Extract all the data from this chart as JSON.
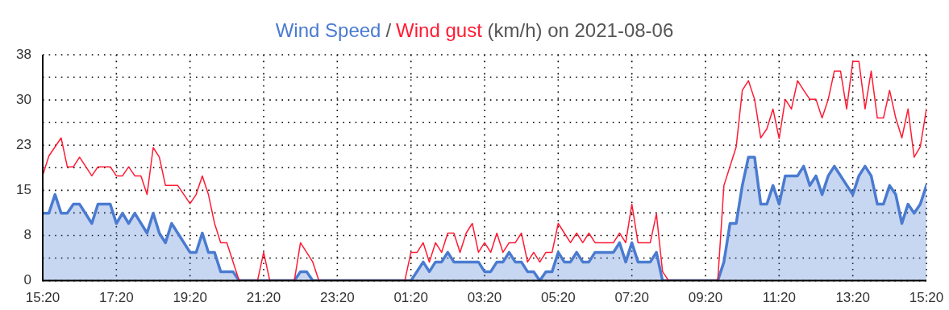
{
  "chart_data": {
    "type": "line",
    "title": "(km/h) on 2021-08-06",
    "annotations": [
      "/"
    ],
    "xlim": [
      "2021-08-06T15:20",
      "2021-08-07T15:20"
    ],
    "xticks": [
      {
        "value": "2021-08-06T15:20",
        "label": "15:20"
      },
      {
        "value": "2021-08-06T17:20",
        "label": "17:20"
      },
      {
        "value": "2021-08-06T19:20",
        "label": "19:20"
      },
      {
        "value": "2021-08-06T21:20",
        "label": "21:20"
      },
      {
        "value": "2021-08-06T23:20",
        "label": "23:20"
      },
      {
        "value": "2021-08-07T01:20",
        "label": "01:20"
      },
      {
        "value": "2021-08-07T03:20",
        "label": "03:20"
      },
      {
        "value": "2021-08-07T05:20",
        "label": "05:20"
      },
      {
        "value": "2021-08-07T07:20",
        "label": "07:20"
      },
      {
        "value": "2021-08-07T09:20",
        "label": "09:20"
      },
      {
        "value": "2021-08-07T11:20",
        "label": "11:20"
      },
      {
        "value": "2021-08-07T13:20",
        "label": "13:20"
      },
      {
        "value": "2021-08-07T15:20",
        "label": "15:20"
      }
    ],
    "ylim": [
      0,
      37.5
    ],
    "yticks": [
      0,
      {
        "value": 3.75,
        "label": null
      },
      {
        "value": 7.5,
        "label": "8"
      },
      {
        "value": 11.25,
        "label": null
      },
      15,
      {
        "value": 18.75,
        "label": null
      },
      {
        "value": 22.5,
        "label": "23"
      },
      {
        "value": 26.25,
        "label": null
      },
      30,
      {
        "value": 33.75,
        "label": null
      },
      {
        "value": 37.5,
        "label": "38"
      }
    ],
    "grid": true,
    "legend": "top",
    "marker": "none",
    "line_style": "solid",
    "series": [
      {
        "name": "Wind Speed",
        "type": "area",
        "color": "#4a7bd0",
        "x": [
          "2021-08-06T15:20",
          "2021-08-06T15:30",
          "2021-08-06T15:40",
          "2021-08-06T15:50",
          "2021-08-06T16:00",
          "2021-08-06T16:10",
          "2021-08-06T16:20",
          "2021-08-06T16:40",
          "2021-08-06T16:50",
          "2021-08-06T17:10",
          "2021-08-06T17:20",
          "2021-08-06T17:30",
          "2021-08-06T17:40",
          "2021-08-06T17:50",
          "2021-08-06T18:10",
          "2021-08-06T18:20",
          "2021-08-06T18:30",
          "2021-08-06T18:40",
          "2021-08-06T18:50",
          "2021-08-06T19:20",
          "2021-08-06T19:30",
          "2021-08-06T19:40",
          "2021-08-06T19:50",
          "2021-08-06T20:00",
          "2021-08-06T20:10",
          "2021-08-06T20:30",
          "2021-08-06T20:40",
          "2021-08-06T22:10",
          "2021-08-06T22:20",
          "2021-08-06T22:30",
          "2021-08-06T22:40",
          "2021-08-07T01:20",
          "2021-08-07T01:40",
          "2021-08-07T01:50",
          "2021-08-07T02:00",
          "2021-08-07T02:10",
          "2021-08-07T02:20",
          "2021-08-07T02:30",
          "2021-08-07T03:10",
          "2021-08-07T03:20",
          "2021-08-07T03:30",
          "2021-08-07T03:40",
          "2021-08-07T03:50",
          "2021-08-07T04:00",
          "2021-08-07T04:10",
          "2021-08-07T04:20",
          "2021-08-07T04:30",
          "2021-08-07T04:40",
          "2021-08-07T04:50",
          "2021-08-07T05:00",
          "2021-08-07T05:10",
          "2021-08-07T05:20",
          "2021-08-07T05:30",
          "2021-08-07T05:40",
          "2021-08-07T05:50",
          "2021-08-07T06:00",
          "2021-08-07T06:10",
          "2021-08-07T06:20",
          "2021-08-07T06:50",
          "2021-08-07T07:00",
          "2021-08-07T07:10",
          "2021-08-07T07:20",
          "2021-08-07T07:30",
          "2021-08-07T07:50",
          "2021-08-07T08:00",
          "2021-08-07T08:10",
          "2021-08-07T09:40",
          "2021-08-07T09:50",
          "2021-08-07T10:00",
          "2021-08-07T10:10",
          "2021-08-07T10:20",
          "2021-08-07T10:30",
          "2021-08-07T10:40",
          "2021-08-07T10:50",
          "2021-08-07T11:00",
          "2021-08-07T11:10",
          "2021-08-07T11:20",
          "2021-08-07T11:30",
          "2021-08-07T11:50",
          "2021-08-07T12:00",
          "2021-08-07T12:10",
          "2021-08-07T12:20",
          "2021-08-07T12:30",
          "2021-08-07T12:40",
          "2021-08-07T12:50",
          "2021-08-07T13:20",
          "2021-08-07T13:30",
          "2021-08-07T13:40",
          "2021-08-07T13:50",
          "2021-08-07T14:00",
          "2021-08-07T14:10",
          "2021-08-07T14:20",
          "2021-08-07T14:30",
          "2021-08-07T14:40",
          "2021-08-07T14:50",
          "2021-08-07T15:00",
          "2021-08-07T15:10",
          "2021-08-07T15:20"
        ],
        "values": [
          11.2,
          11.2,
          14.3,
          11.2,
          11.2,
          12.7,
          12.7,
          9.5,
          12.7,
          12.7,
          9.5,
          11.2,
          9.5,
          11.2,
          7.9,
          11.2,
          7.9,
          6.3,
          9.5,
          4.7,
          4.7,
          7.9,
          4.7,
          4.7,
          1.5,
          1.5,
          0,
          0,
          1.5,
          1.5,
          0,
          0,
          3.1,
          1.5,
          3.1,
          3.1,
          4.7,
          3.1,
          3.1,
          1.5,
          1.5,
          3.1,
          3.1,
          4.7,
          3.1,
          3.1,
          1.5,
          1.5,
          0,
          1.5,
          1.5,
          4.7,
          3.1,
          3.1,
          4.7,
          3.1,
          3.1,
          4.7,
          4.7,
          6.3,
          3.1,
          6.3,
          3.1,
          3.1,
          4.7,
          0,
          0,
          3.1,
          9.5,
          9.5,
          15.8,
          20.5,
          20.5,
          12.7,
          12.7,
          15.8,
          12.7,
          17.4,
          17.4,
          19.0,
          15.8,
          17.4,
          14.3,
          17.4,
          19.0,
          14.3,
          17.4,
          19.0,
          17.4,
          12.7,
          12.7,
          15.8,
          14.3,
          9.5,
          12.7,
          11.2,
          12.7,
          15.8
        ]
      },
      {
        "name": "Wind gust",
        "type": "line",
        "color": "#ff1a33",
        "x": [
          "2021-08-06T15:20",
          "2021-08-06T15:30",
          "2021-08-06T15:50",
          "2021-08-06T16:00",
          "2021-08-06T16:10",
          "2021-08-06T16:20",
          "2021-08-06T16:40",
          "2021-08-06T16:50",
          "2021-08-06T17:10",
          "2021-08-06T17:20",
          "2021-08-06T17:30",
          "2021-08-06T17:40",
          "2021-08-06T17:50",
          "2021-08-06T18:00",
          "2021-08-06T18:10",
          "2021-08-06T18:20",
          "2021-08-06T18:30",
          "2021-08-06T18:40",
          "2021-08-06T19:00",
          "2021-08-06T19:20",
          "2021-08-06T19:30",
          "2021-08-06T19:40",
          "2021-08-06T19:50",
          "2021-08-06T20:00",
          "2021-08-06T20:10",
          "2021-08-06T20:20",
          "2021-08-06T20:40",
          "2021-08-06T21:10",
          "2021-08-06T21:20",
          "2021-08-06T21:30",
          "2021-08-06T22:10",
          "2021-08-06T22:20",
          "2021-08-06T22:40",
          "2021-08-06T22:50",
          "2021-08-07T01:10",
          "2021-08-07T01:20",
          "2021-08-07T01:30",
          "2021-08-07T01:40",
          "2021-08-07T01:50",
          "2021-08-07T02:00",
          "2021-08-07T02:10",
          "2021-08-07T02:20",
          "2021-08-07T02:30",
          "2021-08-07T02:40",
          "2021-08-07T02:50",
          "2021-08-07T03:00",
          "2021-08-07T03:10",
          "2021-08-07T03:20",
          "2021-08-07T03:30",
          "2021-08-07T03:40",
          "2021-08-07T03:50",
          "2021-08-07T04:00",
          "2021-08-07T04:10",
          "2021-08-07T04:20",
          "2021-08-07T04:30",
          "2021-08-07T04:40",
          "2021-08-07T04:50",
          "2021-08-07T05:00",
          "2021-08-07T05:10",
          "2021-08-07T05:20",
          "2021-08-07T05:30",
          "2021-08-07T05:40",
          "2021-08-07T05:50",
          "2021-08-07T06:00",
          "2021-08-07T06:10",
          "2021-08-07T06:20",
          "2021-08-07T06:50",
          "2021-08-07T07:00",
          "2021-08-07T07:10",
          "2021-08-07T07:20",
          "2021-08-07T07:30",
          "2021-08-07T07:50",
          "2021-08-07T08:00",
          "2021-08-07T08:10",
          "2021-08-07T08:20",
          "2021-08-07T09:40",
          "2021-08-07T09:50",
          "2021-08-07T10:00",
          "2021-08-07T10:10",
          "2021-08-07T10:20",
          "2021-08-07T10:30",
          "2021-08-07T10:40",
          "2021-08-07T10:50",
          "2021-08-07T11:00",
          "2021-08-07T11:10",
          "2021-08-07T11:20",
          "2021-08-07T11:30",
          "2021-08-07T11:40",
          "2021-08-07T11:50",
          "2021-08-07T12:00",
          "2021-08-07T12:10",
          "2021-08-07T12:20",
          "2021-08-07T12:30",
          "2021-08-07T12:40",
          "2021-08-07T12:50",
          "2021-08-07T13:00",
          "2021-08-07T13:10",
          "2021-08-07T13:20",
          "2021-08-07T13:30",
          "2021-08-07T13:40",
          "2021-08-07T13:50",
          "2021-08-07T14:00",
          "2021-08-07T14:10",
          "2021-08-07T14:20",
          "2021-08-07T14:30",
          "2021-08-07T14:40",
          "2021-08-07T14:50",
          "2021-08-07T15:00",
          "2021-08-07T15:10",
          "2021-08-07T15:20"
        ],
        "values": [
          17.5,
          20.7,
          23.7,
          18.9,
          18.9,
          20.5,
          17.4,
          18.9,
          18.9,
          17.4,
          17.4,
          18.9,
          17.4,
          17.4,
          14.3,
          22.1,
          20.5,
          15.8,
          15.8,
          12.8,
          14.3,
          17.4,
          14.3,
          9.5,
          6.3,
          6.3,
          0,
          0,
          4.7,
          0,
          0,
          6.3,
          3.1,
          0,
          0,
          4.7,
          4.7,
          6.3,
          3.1,
          6.3,
          4.7,
          7.9,
          7.9,
          4.7,
          7.9,
          9.5,
          4.7,
          6.3,
          4.7,
          7.9,
          4.7,
          6.3,
          6.3,
          7.9,
          3.1,
          4.7,
          3.1,
          4.7,
          4.7,
          9.5,
          7.9,
          6.3,
          7.9,
          6.3,
          7.9,
          6.3,
          6.3,
          7.9,
          6.3,
          12.7,
          6.3,
          6.3,
          11.1,
          1.5,
          0,
          0,
          15.8,
          19.0,
          22.2,
          31.6,
          33.2,
          30.1,
          23.7,
          25.2,
          28.5,
          23.6,
          30.1,
          28.5,
          33.2,
          31.6,
          30.1,
          30.1,
          27.0,
          30.1,
          34.8,
          34.8,
          28.5,
          36.4,
          36.4,
          28.5,
          34.8,
          27.0,
          27.0,
          31.6,
          27.0,
          23.7,
          28.5,
          20.5,
          22.2,
          28.5
        ]
      }
    ]
  }
}
